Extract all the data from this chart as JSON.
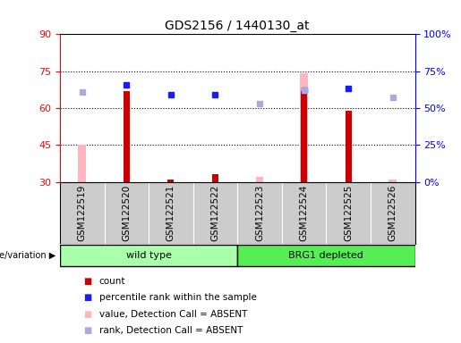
{
  "title": "GDS2156 / 1440130_at",
  "samples": [
    "GSM122519",
    "GSM122520",
    "GSM122521",
    "GSM122522",
    "GSM122523",
    "GSM122524",
    "GSM122525",
    "GSM122526"
  ],
  "ylim_left": [
    30,
    90
  ],
  "ylim_right": [
    0,
    100
  ],
  "yticks_left": [
    30,
    45,
    60,
    75,
    90
  ],
  "yticks_right": [
    0,
    25,
    50,
    75,
    100
  ],
  "ytick_labels_right": [
    "0%",
    "25%",
    "50%",
    "75%",
    "100%"
  ],
  "baseline": 30,
  "count_values": [
    null,
    67,
    31,
    33,
    null,
    67,
    59,
    null
  ],
  "count_color": "#cc0000",
  "rank_values": [
    null,
    66,
    59,
    59,
    null,
    62,
    63,
    null
  ],
  "rank_color": "#1a1aff",
  "absent_value_values": [
    45,
    null,
    null,
    null,
    32,
    74,
    null,
    31
  ],
  "absent_value_color": "#FFB6C1",
  "absent_rank_values": [
    61,
    null,
    null,
    null,
    53,
    62,
    null,
    57
  ],
  "absent_rank_color": "#aaaadd",
  "hlines": [
    45,
    60,
    75
  ],
  "hline_style": "dotted",
  "groups": [
    {
      "label": "wild type",
      "start": 0,
      "end": 3,
      "color": "#aaffaa"
    },
    {
      "label": "BRG1 depleted",
      "start": 4,
      "end": 7,
      "color": "#55ee55"
    }
  ],
  "genotype_label": "genotype/variation",
  "legend_items": [
    "count",
    "percentile rank within the sample",
    "value, Detection Call = ABSENT",
    "rank, Detection Call = ABSENT"
  ],
  "legend_colors": [
    "#cc0000",
    "#1a1aff",
    "#FFB6C1",
    "#aaaadd"
  ],
  "tick_area_color": "#cccccc",
  "plot_bg_color": "#ffffff",
  "title_fontsize": 10,
  "axis_label_fontsize": 8,
  "tick_fontsize": 8,
  "legend_fontsize": 7.5
}
